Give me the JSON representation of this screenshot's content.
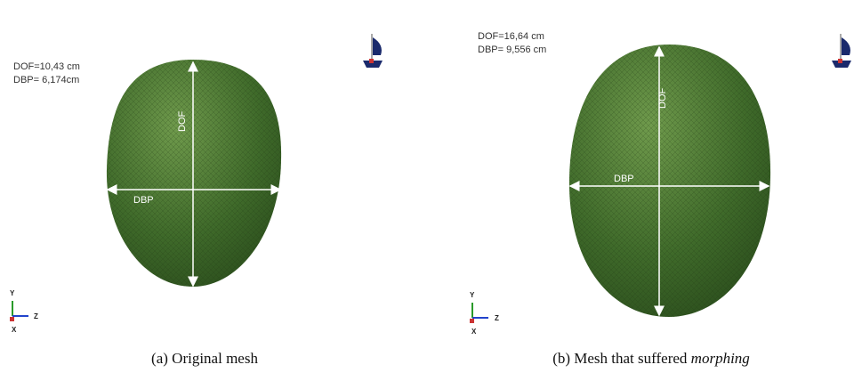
{
  "figure": {
    "panels": [
      {
        "dof_label": "DOF=10,43 cm",
        "dbp_label": "DBP= 6,174cm",
        "dof_axis": "DOF",
        "dbp_axis": "DBP",
        "triad": [
          "Y",
          "Z",
          "X"
        ],
        "caption": "(a) Original mesh"
      },
      {
        "dof_label": "DOF=16,64 cm",
        "dbp_label": "DBP= 9,556 cm",
        "dof_axis": "DOF",
        "dbp_axis": "DBP",
        "triad": [
          "Y",
          "Z",
          "X"
        ],
        "caption": "(b) Mesh that suffered ",
        "caption_emphasis": "morphing"
      }
    ]
  }
}
